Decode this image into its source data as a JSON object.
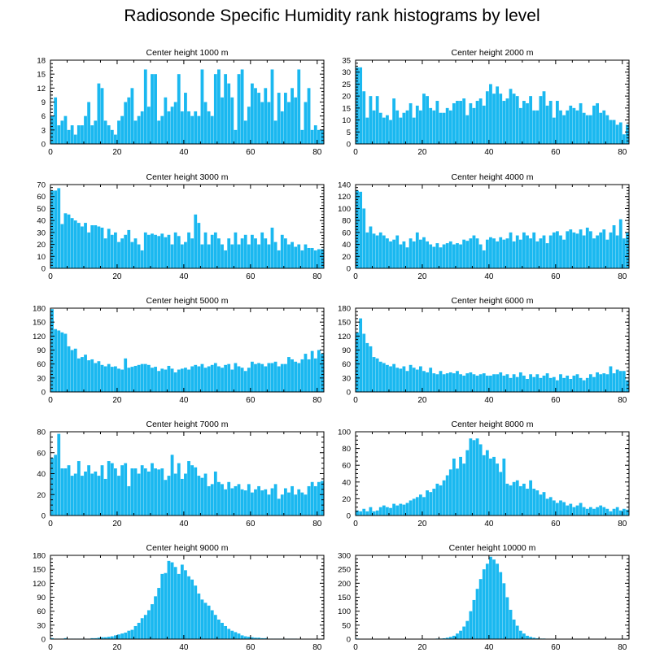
{
  "title": "Radiosonde Specific Humidity rank histograms by level",
  "colors": {
    "bar": "#1ab8f0",
    "axis": "#000000",
    "background": "#ffffff"
  },
  "chart_data": [
    {
      "type": "bar",
      "title": "Center height 1000 m",
      "xlim": [
        0,
        82
      ],
      "ylim": [
        0,
        18
      ],
      "xticks": [
        0,
        20,
        40,
        60,
        80
      ],
      "yticks": [
        0,
        3,
        6,
        9,
        12,
        15,
        18
      ],
      "values": [
        6,
        10,
        4,
        5,
        6,
        3,
        4,
        2,
        4,
        4,
        6,
        9,
        4,
        5,
        13,
        12,
        5,
        4,
        3,
        2,
        5,
        6,
        9,
        10,
        12,
        5,
        6,
        7,
        16,
        8,
        15,
        15,
        5,
        6,
        10,
        7,
        8,
        9,
        15,
        7,
        11,
        7,
        6,
        7,
        6,
        16,
        9,
        7,
        6,
        15,
        16,
        10,
        15,
        13,
        10,
        3,
        15,
        16,
        5,
        8,
        13,
        12,
        11,
        9,
        12,
        9,
        16,
        5,
        11,
        7,
        11,
        9,
        12,
        10,
        16,
        3,
        9,
        12,
        3,
        4,
        3,
        3
      ]
    },
    {
      "type": "bar",
      "title": "Center height 2000 m",
      "xlim": [
        0,
        82
      ],
      "ylim": [
        0,
        35
      ],
      "xticks": [
        0,
        20,
        40,
        60,
        80
      ],
      "yticks": [
        0,
        5,
        10,
        15,
        20,
        25,
        30,
        35
      ],
      "values": [
        32,
        32,
        22,
        11,
        20,
        14,
        20,
        13,
        11,
        12,
        10,
        19,
        14,
        11,
        13,
        14,
        17,
        11,
        16,
        14,
        21,
        20,
        15,
        14,
        18,
        13,
        13,
        15,
        14,
        17,
        18,
        18,
        19,
        12,
        17,
        15,
        18,
        19,
        16,
        22,
        25,
        21,
        24,
        21,
        18,
        19,
        23,
        21,
        20,
        15,
        18,
        17,
        20,
        14,
        14,
        20,
        22,
        16,
        18,
        11,
        18,
        14,
        12,
        14,
        16,
        15,
        14,
        17,
        13,
        12,
        12,
        16,
        17,
        13,
        14,
        12,
        10,
        10,
        8,
        9,
        4,
        8
      ]
    },
    {
      "type": "bar",
      "title": "Center height 3000 m",
      "xlim": [
        0,
        82
      ],
      "ylim": [
        0,
        70
      ],
      "xticks": [
        0,
        20,
        40,
        60,
        80
      ],
      "yticks": [
        0,
        10,
        20,
        30,
        40,
        50,
        60,
        70
      ],
      "values": [
        65,
        65,
        67,
        37,
        46,
        45,
        42,
        40,
        38,
        35,
        38,
        30,
        36,
        36,
        35,
        34,
        25,
        33,
        28,
        30,
        22,
        25,
        28,
        32,
        22,
        25,
        20,
        15,
        30,
        28,
        29,
        28,
        27,
        29,
        26,
        28,
        20,
        30,
        27,
        20,
        22,
        30,
        25,
        45,
        38,
        20,
        30,
        20,
        28,
        30,
        25,
        20,
        15,
        25,
        20,
        30,
        20,
        25,
        28,
        20,
        28,
        25,
        20,
        30,
        25,
        20,
        34,
        22,
        15,
        28,
        25,
        20,
        22,
        18,
        20,
        15,
        20,
        17,
        17,
        15,
        16,
        16
      ]
    },
    {
      "type": "bar",
      "title": "Center height 4000 m",
      "xlim": [
        0,
        82
      ],
      "ylim": [
        0,
        140
      ],
      "xticks": [
        0,
        20,
        40,
        60,
        80
      ],
      "yticks": [
        0,
        20,
        40,
        60,
        80,
        100,
        120,
        140
      ],
      "values": [
        130,
        128,
        100,
        60,
        70,
        58,
        55,
        60,
        55,
        50,
        45,
        48,
        55,
        40,
        45,
        35,
        50,
        45,
        60,
        48,
        52,
        45,
        40,
        36,
        42,
        35,
        40,
        42,
        45,
        40,
        42,
        40,
        48,
        46,
        50,
        55,
        50,
        40,
        30,
        48,
        52,
        50,
        45,
        52,
        48,
        50,
        60,
        45,
        55,
        48,
        60,
        55,
        50,
        60,
        45,
        50,
        55,
        42,
        55,
        60,
        62,
        55,
        48,
        62,
        65,
        60,
        58,
        65,
        55,
        68,
        62,
        50,
        55,
        60,
        65,
        48,
        60,
        72,
        55,
        82,
        50,
        60
      ]
    },
    {
      "type": "bar",
      "title": "Center height 5000 m",
      "xlim": [
        0,
        82
      ],
      "ylim": [
        0,
        180
      ],
      "xticks": [
        0,
        20,
        40,
        60,
        80
      ],
      "yticks": [
        0,
        30,
        60,
        90,
        120,
        150,
        180
      ],
      "values": [
        178,
        135,
        132,
        128,
        125,
        98,
        90,
        93,
        72,
        75,
        80,
        68,
        70,
        62,
        66,
        58,
        55,
        60,
        54,
        55,
        50,
        48,
        72,
        52,
        54,
        56,
        58,
        60,
        60,
        58,
        52,
        54,
        45,
        50,
        48,
        56,
        50,
        42,
        48,
        50,
        52,
        48,
        55,
        58,
        55,
        60,
        52,
        55,
        58,
        62,
        55,
        52,
        58,
        60,
        48,
        62,
        55,
        52,
        45,
        52,
        65,
        60,
        62,
        60,
        55,
        62,
        62,
        65,
        55,
        60,
        60,
        75,
        70,
        65,
        62,
        70,
        82,
        70,
        88,
        72,
        90,
        82
      ]
    },
    {
      "type": "bar",
      "title": "Center height 6000 m",
      "xlim": [
        0,
        82
      ],
      "ylim": [
        0,
        180
      ],
      "xticks": [
        0,
        20,
        40,
        60,
        80
      ],
      "yticks": [
        0,
        30,
        60,
        90,
        120,
        150,
        180
      ],
      "values": [
        128,
        158,
        125,
        105,
        98,
        75,
        72,
        65,
        62,
        58,
        55,
        60,
        52,
        50,
        55,
        45,
        58,
        52,
        48,
        55,
        45,
        42,
        52,
        40,
        38,
        45,
        38,
        40,
        42,
        40,
        45,
        38,
        35,
        40,
        42,
        38,
        35,
        38,
        40,
        35,
        35,
        38,
        38,
        42,
        35,
        38,
        30,
        38,
        32,
        42,
        35,
        28,
        38,
        32,
        38,
        30,
        35,
        40,
        30,
        32,
        25,
        38,
        30,
        35,
        28,
        35,
        38,
        30,
        25,
        30,
        38,
        32,
        42,
        38,
        40,
        38,
        55,
        40,
        48,
        45,
        45,
        25
      ]
    },
    {
      "type": "bar",
      "title": "Center height 7000 m",
      "xlim": [
        0,
        82
      ],
      "ylim": [
        0,
        80
      ],
      "xticks": [
        0,
        20,
        40,
        60,
        80
      ],
      "yticks": [
        0,
        20,
        40,
        60,
        80
      ],
      "values": [
        55,
        58,
        78,
        45,
        45,
        48,
        38,
        40,
        52,
        38,
        42,
        48,
        40,
        42,
        38,
        48,
        35,
        52,
        50,
        45,
        38,
        48,
        50,
        28,
        45,
        45,
        40,
        48,
        45,
        42,
        50,
        45,
        44,
        45,
        34,
        38,
        58,
        40,
        50,
        35,
        40,
        52,
        48,
        46,
        38,
        36,
        40,
        28,
        30,
        42,
        32,
        30,
        25,
        32,
        26,
        28,
        30,
        25,
        24,
        30,
        22,
        25,
        28,
        24,
        25,
        20,
        26,
        30,
        16,
        20,
        26,
        22,
        28,
        20,
        25,
        22,
        20,
        28,
        32,
        28,
        32,
        33
      ]
    },
    {
      "type": "bar",
      "title": "Center height 8000 m",
      "xlim": [
        0,
        82
      ],
      "ylim": [
        0,
        100
      ],
      "xticks": [
        0,
        20,
        40,
        60,
        80
      ],
      "yticks": [
        0,
        20,
        40,
        60,
        80,
        100
      ],
      "values": [
        6,
        5,
        8,
        5,
        10,
        5,
        6,
        10,
        12,
        10,
        9,
        14,
        12,
        14,
        13,
        15,
        18,
        20,
        22,
        25,
        22,
        30,
        28,
        32,
        38,
        36,
        42,
        48,
        55,
        68,
        56,
        70,
        62,
        78,
        92,
        90,
        92,
        85,
        72,
        78,
        68,
        70,
        62,
        52,
        68,
        38,
        36,
        40,
        42,
        35,
        38,
        32,
        42,
        32,
        30,
        25,
        28,
        20,
        22,
        18,
        15,
        18,
        16,
        12,
        14,
        10,
        12,
        15,
        10,
        8,
        10,
        8,
        10,
        12,
        10,
        8,
        5,
        8,
        10,
        6,
        8,
        7
      ]
    },
    {
      "type": "bar",
      "title": "Center height 9000 m",
      "xlim": [
        0,
        82
      ],
      "ylim": [
        0,
        180
      ],
      "xticks": [
        0,
        20,
        40,
        60,
        80
      ],
      "yticks": [
        0,
        30,
        60,
        90,
        120,
        150,
        180
      ],
      "values": [
        2,
        1,
        1,
        1,
        2,
        1,
        1,
        1,
        1,
        1,
        1,
        1,
        2,
        2,
        3,
        4,
        4,
        5,
        6,
        8,
        10,
        12,
        14,
        18,
        20,
        28,
        35,
        45,
        52,
        62,
        75,
        92,
        110,
        140,
        142,
        168,
        165,
        155,
        140,
        160,
        148,
        135,
        128,
        115,
        98,
        85,
        78,
        72,
        62,
        52,
        42,
        35,
        28,
        22,
        18,
        15,
        12,
        8,
        6,
        5,
        4,
        3,
        3,
        2,
        2,
        1,
        1,
        1,
        1,
        1,
        1,
        1,
        1,
        1,
        0,
        0,
        0,
        0,
        0,
        0,
        0,
        0
      ]
    },
    {
      "type": "bar",
      "title": "Center height 10000 m",
      "xlim": [
        0,
        82
      ],
      "ylim": [
        0,
        300
      ],
      "xticks": [
        0,
        20,
        40,
        60,
        80
      ],
      "yticks": [
        0,
        50,
        100,
        150,
        200,
        250,
        300
      ],
      "values": [
        2,
        1,
        1,
        1,
        1,
        1,
        1,
        1,
        1,
        1,
        1,
        1,
        1,
        1,
        1,
        1,
        1,
        1,
        1,
        1,
        1,
        1,
        1,
        1,
        2,
        2,
        3,
        5,
        8,
        12,
        20,
        30,
        45,
        65,
        100,
        140,
        180,
        215,
        250,
        270,
        295,
        285,
        270,
        240,
        200,
        150,
        105,
        70,
        48,
        30,
        20,
        12,
        8,
        5,
        3,
        2,
        2,
        1,
        1,
        1,
        1,
        1,
        1,
        1,
        1,
        1,
        1,
        1,
        1,
        1,
        1,
        1,
        1,
        1,
        1,
        1,
        1,
        1,
        1,
        1,
        1,
        1
      ]
    }
  ]
}
